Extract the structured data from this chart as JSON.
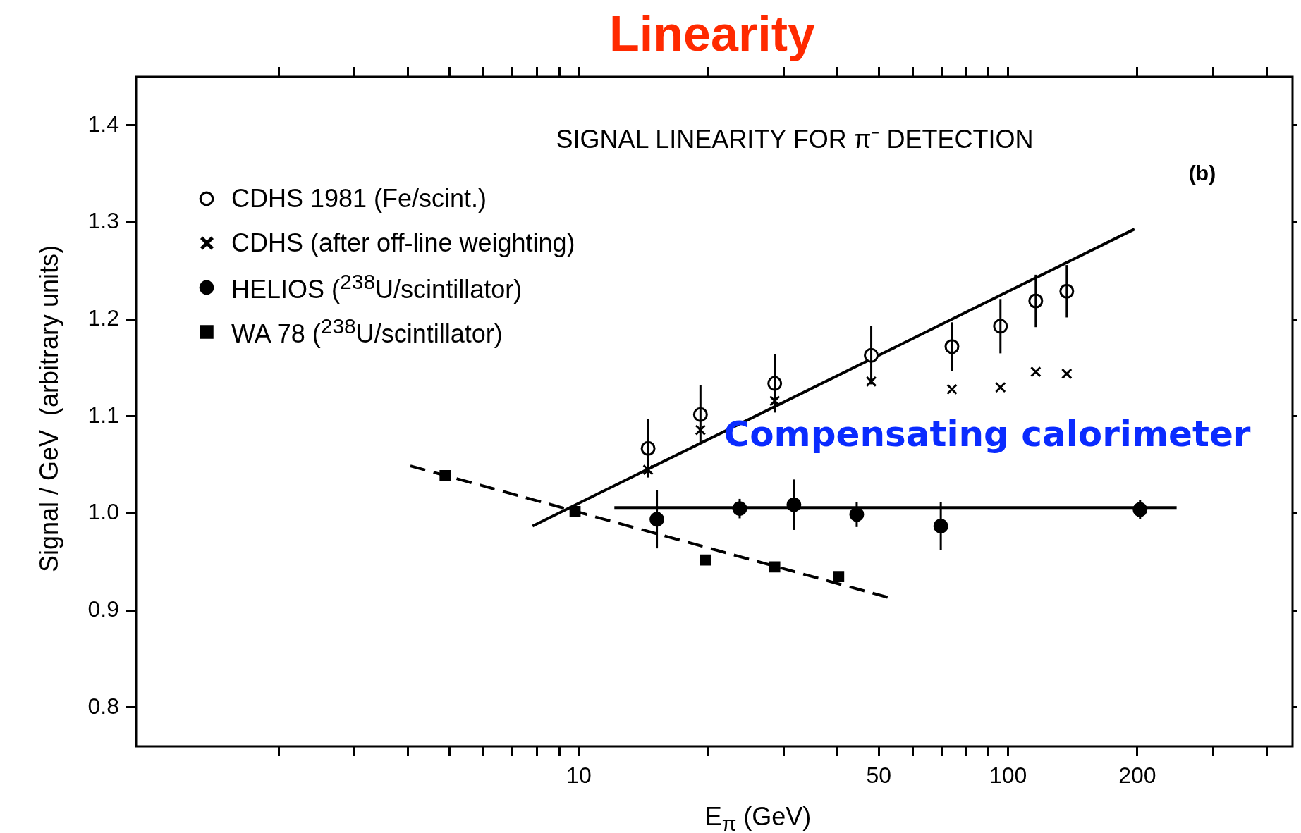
{
  "chart_data": {
    "type": "scatter",
    "title": "Linearity",
    "subtitle": "SIGNAL LINEARITY FOR π⁻ DETECTION",
    "xlabel": "E$_{π}$ (GeV)",
    "ylabel": "Signal / GeV  (arbitrary units)",
    "annotations": [
      "(b)",
      "Compensating calorimeter"
    ],
    "log": "x",
    "grid": false,
    "legend": "top left",
    "xlim": [
      0.93,
      460
    ],
    "ylim": [
      0.76,
      1.45
    ],
    "xticks": [
      {
        "value": 2,
        "label": null
      },
      {
        "value": 3,
        "label": null
      },
      {
        "value": 4,
        "label": null
      },
      {
        "value": 5,
        "label": null
      },
      {
        "value": 6,
        "label": null
      },
      {
        "value": 7,
        "label": null
      },
      {
        "value": 8,
        "label": null
      },
      {
        "value": 9,
        "label": null
      },
      10,
      {
        "value": 20,
        "label": null
      },
      {
        "value": 30,
        "label": null
      },
      {
        "value": 40,
        "label": null
      },
      50,
      {
        "value": 60,
        "label": null
      },
      {
        "value": 70,
        "label": null
      },
      {
        "value": 80,
        "label": null
      },
      {
        "value": 90,
        "label": null
      },
      100,
      200,
      {
        "value": 300,
        "label": null
      },
      {
        "value": 400,
        "label": null
      }
    ],
    "yticks": [
      0.8,
      0.9,
      {
        "value": 1,
        "label": "1.0"
      },
      1.1,
      1.2,
      1.3,
      1.4
    ],
    "series": [
      {
        "name": "CDHS 1981 (Fe/scint.)",
        "type": "scatter",
        "marker": "circle",
        "color": "#000000",
        "x": [
          14.5,
          19.2,
          28.6,
          48,
          74,
          96,
          116,
          137
        ],
        "values": [
          1.067,
          1.102,
          1.134,
          1.163,
          1.172,
          1.193,
          1.219,
          1.229
        ],
        "errors": [
          0.03,
          0.03,
          0.03,
          0.03,
          0.025,
          0.028,
          0.027,
          0.027
        ]
      },
      {
        "name": "CDHS (after off-line weighting)",
        "type": "scatter",
        "marker": "cross",
        "color": "#000000",
        "x": [
          14.5,
          19.2,
          28.6,
          48,
          74,
          96,
          116,
          137
        ],
        "values": [
          1.045,
          1.086,
          1.116,
          1.136,
          1.128,
          1.13,
          1.146,
          1.144
        ]
      },
      {
        "name": "HELIOS ($^{238}$U/scintillator)",
        "type": "scatter",
        "marker": "circle",
        "color": "#000000",
        "x": [
          15.2,
          23.7,
          31.7,
          44.4,
          69.7,
          203
        ],
        "values": [
          0.994,
          1.005,
          1.009,
          0.999,
          0.987,
          1.004
        ],
        "errors": [
          0.03,
          0.01,
          0.026,
          0.013,
          0.025,
          0.01
        ]
      },
      {
        "name": "WA 78 ($^{238}$U/scintillator)",
        "type": "scatter",
        "marker": "square",
        "color": "#000000",
        "x": [
          4.88,
          9.8,
          19.7,
          28.6,
          40.3
        ],
        "values": [
          1.039,
          1.002,
          0.952,
          0.945,
          0.935
        ]
      },
      {
        "type": "line",
        "marker": "none",
        "line_style": "solid",
        "color": "#000000",
        "x": [
          7.8,
          197
        ],
        "values": [
          0.987,
          1.293
        ]
      },
      {
        "type": "line",
        "marker": "none",
        "line_style": "solid",
        "color": "#000000",
        "x": [
          12.1,
          247
        ],
        "values": [
          1.006,
          1.006
        ]
      },
      {
        "type": "line",
        "marker": "none",
        "line_style": "dashed",
        "color": "#000000",
        "x": [
          4.05,
          53
        ],
        "values": [
          1.049,
          0.913
        ]
      }
    ]
  }
}
